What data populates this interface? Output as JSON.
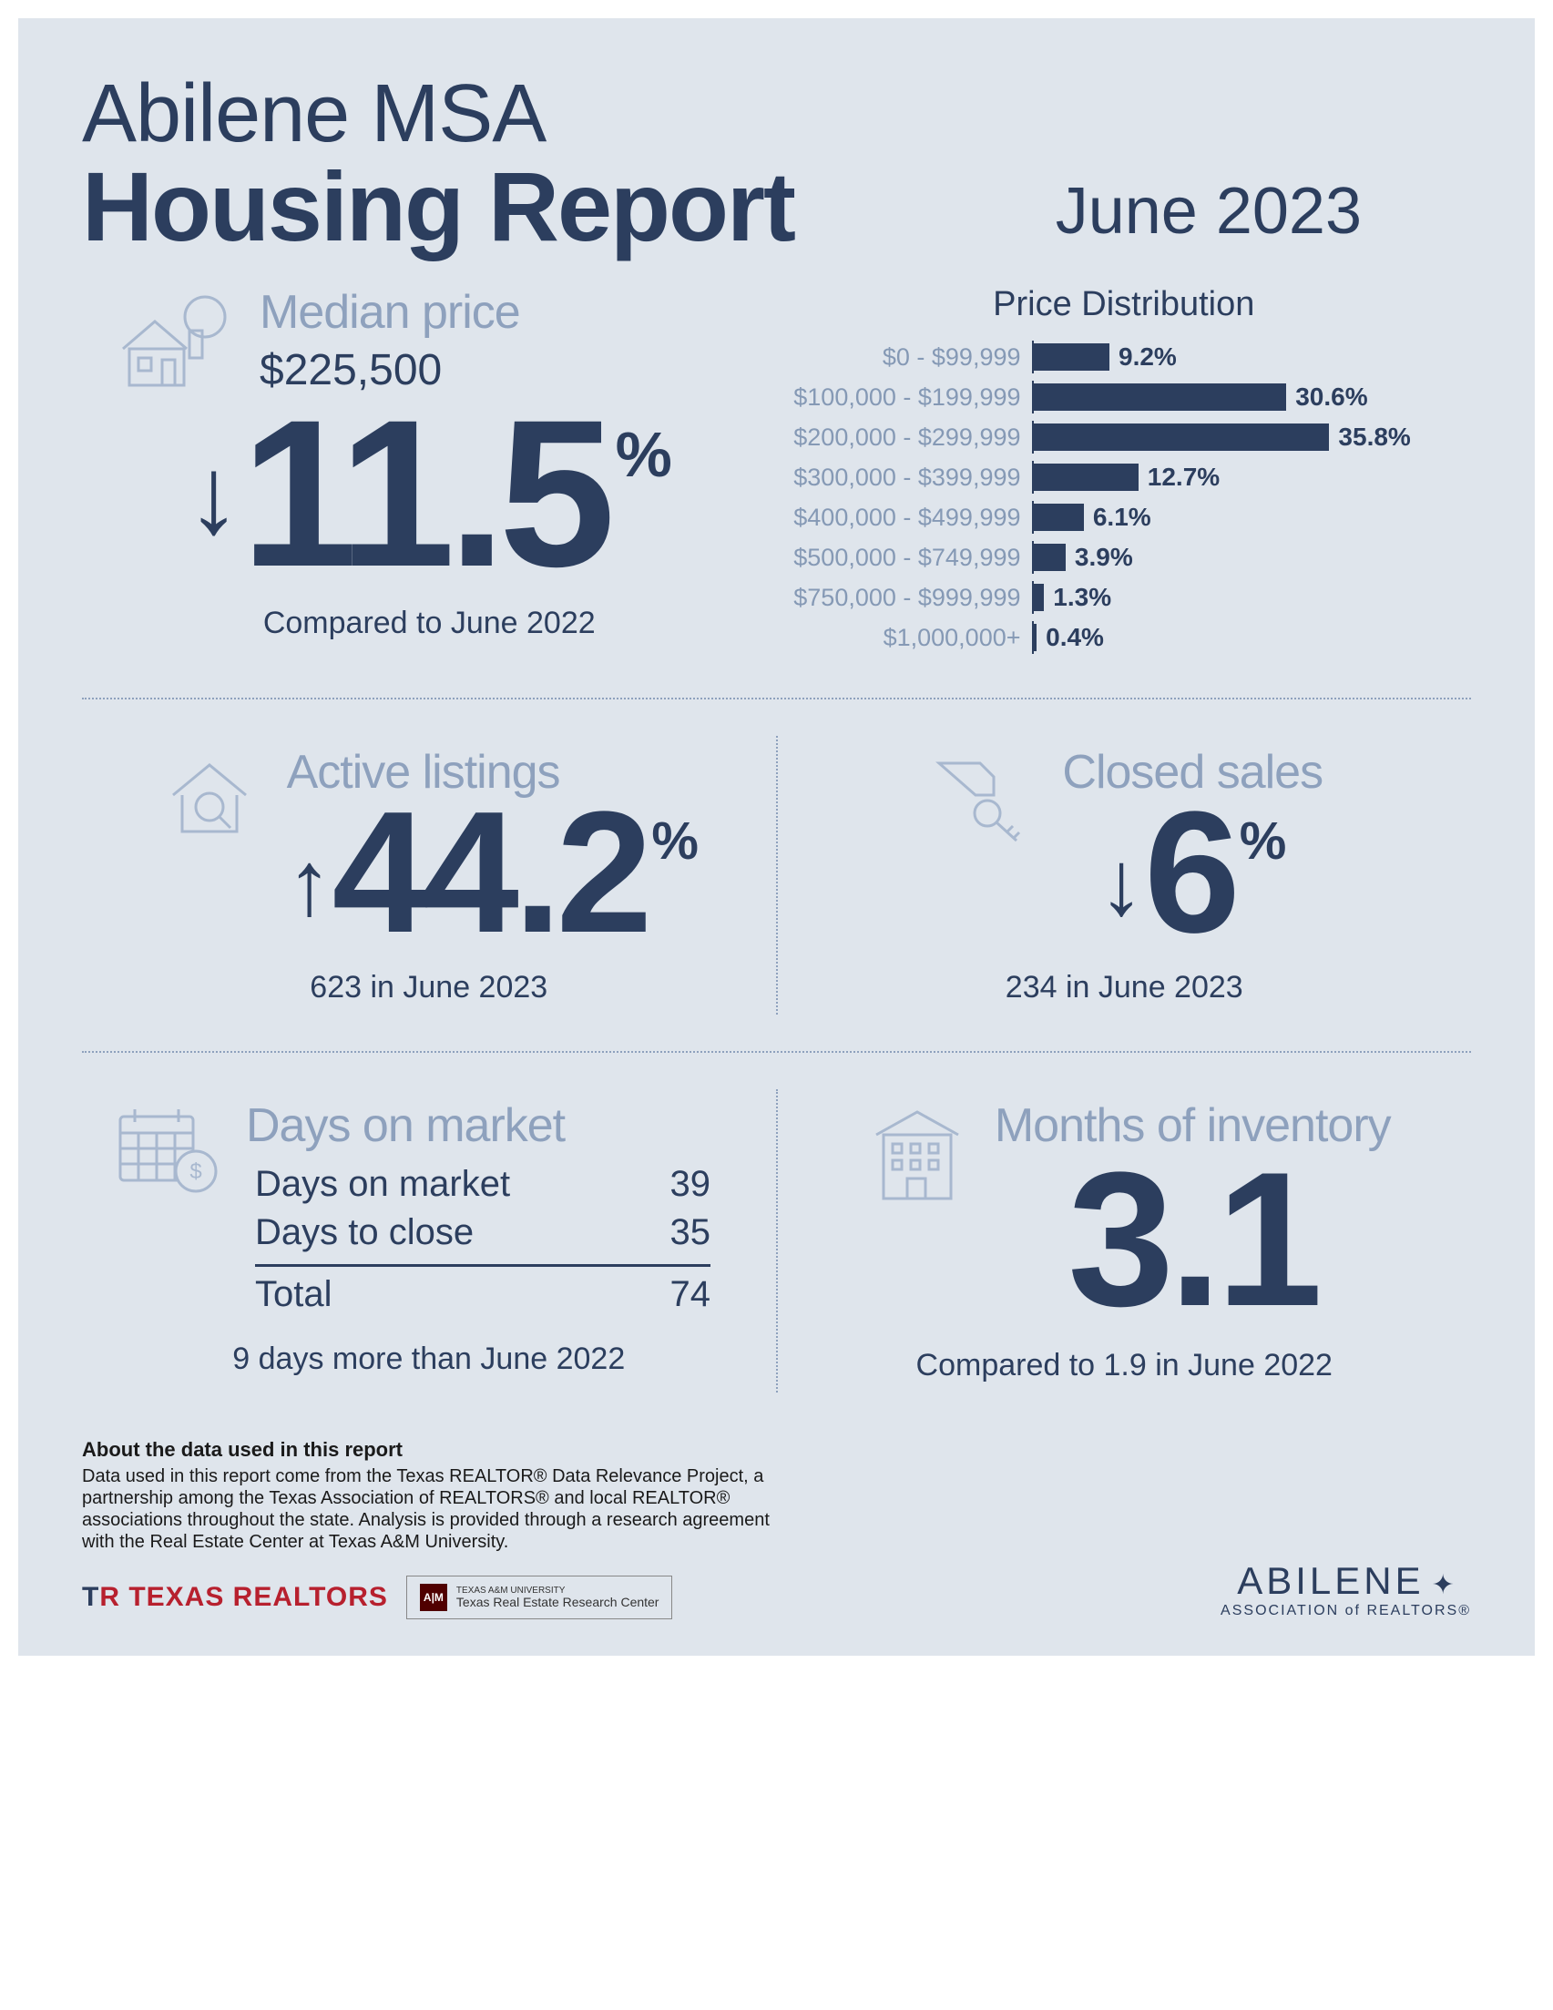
{
  "title": {
    "line1": "Abilene MSA",
    "line2": "Housing Report"
  },
  "date_heading": "June 2023",
  "median": {
    "label": "Median price",
    "value": "$225,500",
    "direction": "down",
    "pct": "11.5",
    "caption": "Compared to June 2022"
  },
  "price_dist": {
    "title": "Price Distribution",
    "max_pct": 36,
    "bar_color": "#2c3e5e",
    "label_color": "#8599b5",
    "rows": [
      {
        "label": "$0 - $99,999",
        "pct": 9.2,
        "display": "9.2%"
      },
      {
        "label": "$100,000 - $199,999",
        "pct": 30.6,
        "display": "30.6%"
      },
      {
        "label": "$200,000 - $299,999",
        "pct": 35.8,
        "display": "35.8%"
      },
      {
        "label": "$300,000 - $399,999",
        "pct": 12.7,
        "display": "12.7%"
      },
      {
        "label": "$400,000 - $499,999",
        "pct": 6.1,
        "display": "6.1%"
      },
      {
        "label": "$500,000 - $749,999",
        "pct": 3.9,
        "display": "3.9%"
      },
      {
        "label": "$750,000 - $999,999",
        "pct": 1.3,
        "display": "1.3%"
      },
      {
        "label": "$1,000,000+",
        "pct": 0.4,
        "display": "0.4%"
      }
    ]
  },
  "active": {
    "label": "Active listings",
    "direction": "up",
    "pct": "44.2",
    "caption": "623 in June 2023"
  },
  "closed": {
    "label": "Closed sales",
    "direction": "down",
    "pct": "6",
    "caption": "234 in June 2023"
  },
  "dom": {
    "label": "Days on market",
    "row1_label": "Days on market",
    "row1_val": "39",
    "row2_label": "Days to close",
    "row2_val": "35",
    "total_label": "Total",
    "total_val": "74",
    "caption": "9 days more than June 2022"
  },
  "inventory": {
    "label": "Months of inventory",
    "value": "3.1",
    "caption": "Compared to 1.9 in June 2022"
  },
  "footer": {
    "about_head": "About the data used in this report",
    "about_text": "Data used in this report come from the Texas REALTOR® Data Relevance Project, a partnership among the Texas Association of REALTORS® and local REALTOR® associations throughout the state. Analysis is provided through a research agreement with the Real Estate Center at Texas A&M University.",
    "tr_logo": "TEXAS REALTORS",
    "tamu_l1": "TEXAS A&M UNIVERSITY",
    "tamu_l2": "Texas Real Estate Research Center",
    "abilene_name": "ABILENE",
    "abilene_sub": "ASSOCIATION of REALTORS®"
  },
  "colors": {
    "background": "#dfe5ec",
    "primary": "#2c3e5e",
    "muted": "#8ea1bd",
    "icon_stroke": "#a8b8cf"
  }
}
